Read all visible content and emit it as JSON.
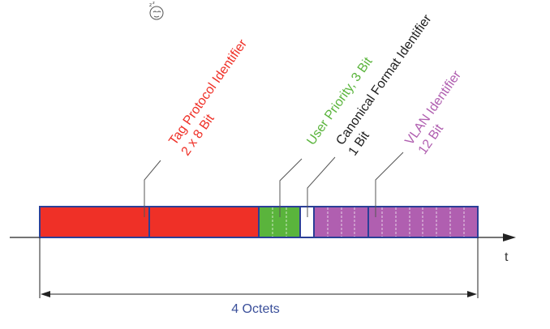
{
  "fields": [
    {
      "id": "tpi",
      "title": "Tag Protocol Identifier",
      "detail": "2 x 8 Bit",
      "color": "#ef3027",
      "bits": 16
    },
    {
      "id": "up",
      "title": "User Priority, 3 Bit",
      "detail": "",
      "color": "#5ab43c",
      "bits": 3
    },
    {
      "id": "cfi",
      "title": "Canonical Format Identifier",
      "detail": "1 Bit",
      "color": "#1e1e1e",
      "bits": 1
    },
    {
      "id": "vid",
      "title": "VLAN Identifier",
      "detail": "12 Bit",
      "color": "#b05fb0",
      "bits": 12
    }
  ],
  "frame_border_color": "#2b3f97",
  "axis_label": "t",
  "span_label": "4 Octets",
  "span_label_color": "#3a4f9a",
  "decor_icon": "sleeping-face-icon"
}
